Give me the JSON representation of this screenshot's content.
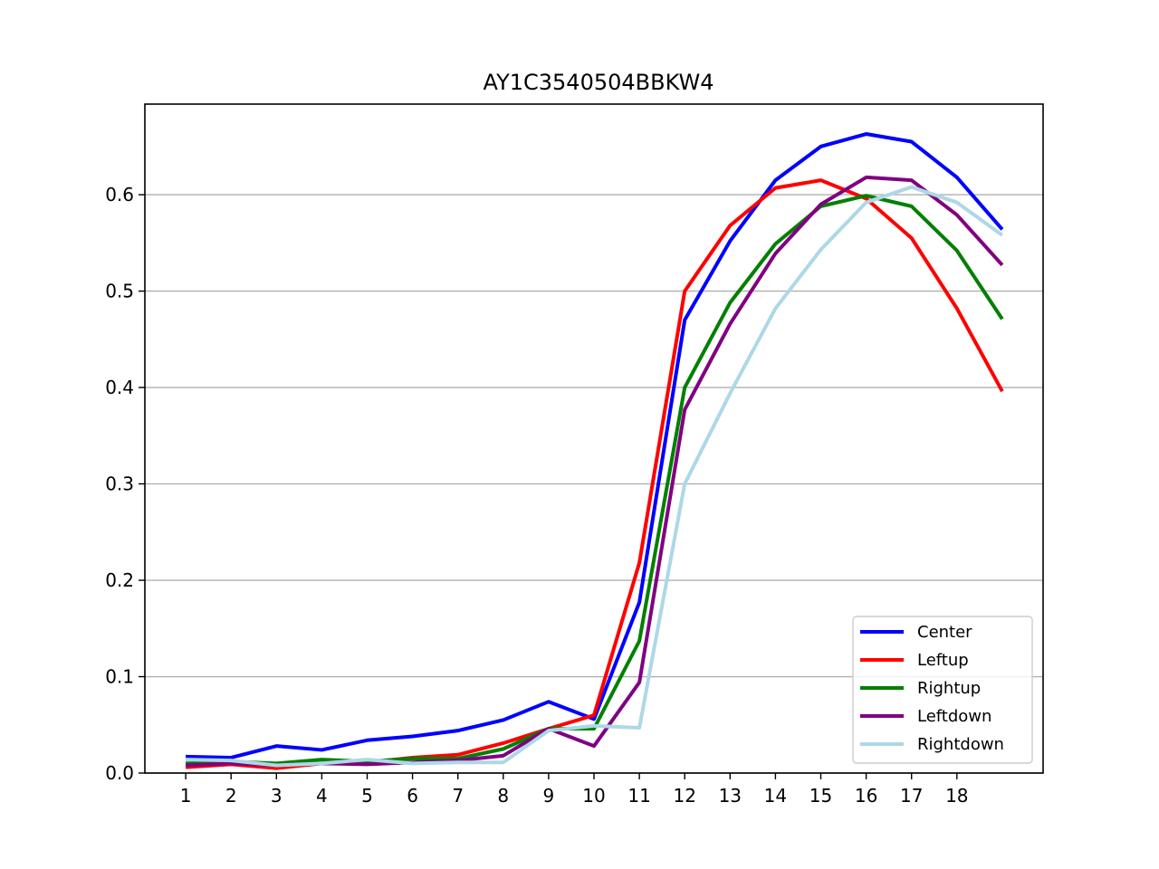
{
  "chart_data": {
    "type": "line",
    "title": "AY1C3540504BBKW4",
    "xlabel": "",
    "ylabel": "",
    "x": [
      1,
      2,
      3,
      4,
      5,
      6,
      7,
      8,
      9,
      10,
      11,
      12,
      13,
      14,
      15,
      16,
      17,
      18,
      19
    ],
    "x_tick_labels": [
      "1",
      "2",
      "3",
      "4",
      "5",
      "6",
      "7",
      "8",
      "9",
      "10",
      "11",
      "12",
      "13",
      "14",
      "15",
      "16",
      "17",
      "18"
    ],
    "x_ticks": [
      1,
      2,
      3,
      4,
      5,
      6,
      7,
      8,
      9,
      10,
      11,
      12,
      13,
      14,
      15,
      16,
      17,
      18
    ],
    "xlim": [
      0.1,
      19.9
    ],
    "y_ticks": [
      0.0,
      0.1,
      0.2,
      0.3,
      0.4,
      0.5,
      0.6
    ],
    "y_tick_labels": [
      "0.0",
      "0.1",
      "0.2",
      "0.3",
      "0.4",
      "0.5",
      "0.6"
    ],
    "ylim": [
      0.0,
      0.694
    ],
    "grid": "horizontal",
    "legend_position": "lower-right",
    "series": [
      {
        "name": "Center",
        "color": "#0000ff",
        "values": [
          0.017,
          0.016,
          0.028,
          0.024,
          0.034,
          0.038,
          0.044,
          0.055,
          0.074,
          0.056,
          0.177,
          0.47,
          0.552,
          0.615,
          0.65,
          0.663,
          0.655,
          0.618,
          0.564
        ]
      },
      {
        "name": "Leftup",
        "color": "#ff0000",
        "values": [
          0.006,
          0.009,
          0.005,
          0.01,
          0.011,
          0.016,
          0.019,
          0.031,
          0.046,
          0.06,
          0.218,
          0.5,
          0.568,
          0.607,
          0.615,
          0.596,
          0.555,
          0.482,
          0.396
        ]
      },
      {
        "name": "Rightup",
        "color": "#008000",
        "values": [
          0.01,
          0.012,
          0.01,
          0.014,
          0.012,
          0.015,
          0.015,
          0.025,
          0.046,
          0.046,
          0.137,
          0.4,
          0.488,
          0.549,
          0.588,
          0.599,
          0.588,
          0.542,
          0.471
        ]
      },
      {
        "name": "Leftdown",
        "color": "#800080",
        "values": [
          0.008,
          0.01,
          0.008,
          0.01,
          0.009,
          0.011,
          0.013,
          0.018,
          0.046,
          0.028,
          0.094,
          0.377,
          0.466,
          0.539,
          0.59,
          0.618,
          0.615,
          0.579,
          0.527
        ]
      },
      {
        "name": "Rightdown",
        "color": "#add8e6",
        "values": [
          0.014,
          0.013,
          0.008,
          0.01,
          0.014,
          0.01,
          0.011,
          0.011,
          0.044,
          0.049,
          0.047,
          0.3,
          0.394,
          0.482,
          0.543,
          0.592,
          0.608,
          0.592,
          0.558
        ]
      }
    ]
  }
}
